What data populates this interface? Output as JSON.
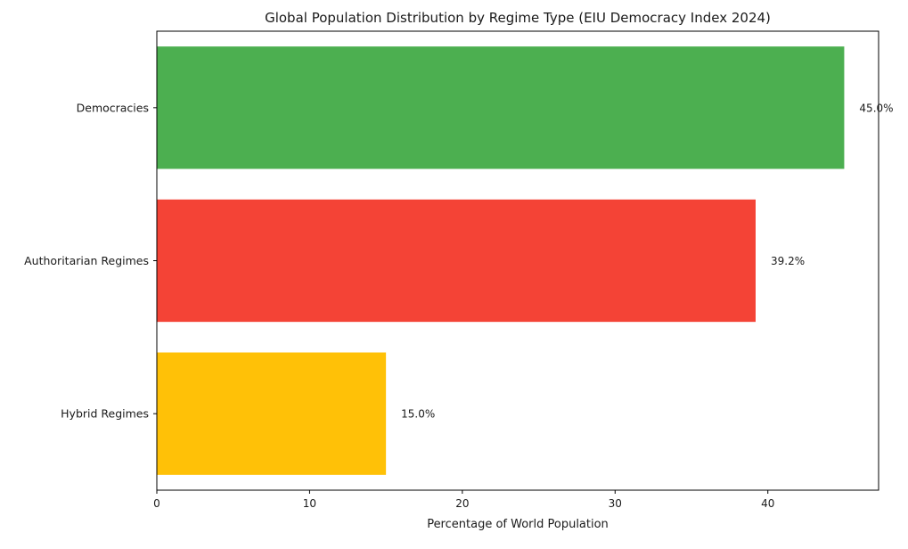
{
  "chart_data": {
    "type": "bar",
    "orientation": "horizontal",
    "title": "Global Population Distribution by Regime Type (EIU Democracy Index 2024)",
    "xlabel": "Percentage of World Population",
    "ylabel": "",
    "categories": [
      "Democracies",
      "Authoritarian Regimes",
      "Hybrid Regimes"
    ],
    "values": [
      45.0,
      39.2,
      15.0
    ],
    "data_labels": [
      "45.0%",
      "39.2%",
      "15.0%"
    ],
    "colors": [
      "#4caf50",
      "#f44336",
      "#ffc107"
    ],
    "xlim": [
      0,
      47.25
    ],
    "xticks": [
      0,
      10,
      20,
      30,
      40
    ],
    "grid": false,
    "legend": "none"
  }
}
